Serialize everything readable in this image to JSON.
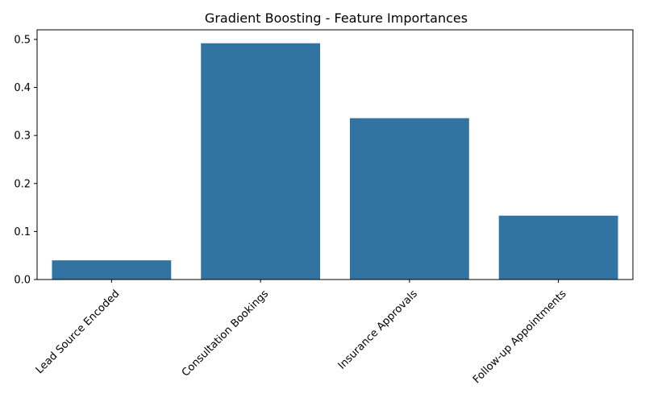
{
  "chart_data": {
    "type": "bar",
    "title": "Gradient Boosting - Feature Importances",
    "xlabel": "",
    "ylabel": "",
    "categories": [
      "Lead Source Encoded",
      "Consultation Bookings",
      "Insurance Approvals",
      "Follow-up Appointments"
    ],
    "values": [
      0.04,
      0.492,
      0.336,
      0.133
    ],
    "ylim": [
      0,
      0.52
    ],
    "yticks": [
      0.0,
      0.1,
      0.2,
      0.3,
      0.4,
      0.5
    ],
    "ytick_labels": [
      "0.0",
      "0.1",
      "0.2",
      "0.3",
      "0.4",
      "0.5"
    ],
    "bar_color": "#3274a1",
    "grid": false,
    "xtick_rotation_deg": 45
  }
}
